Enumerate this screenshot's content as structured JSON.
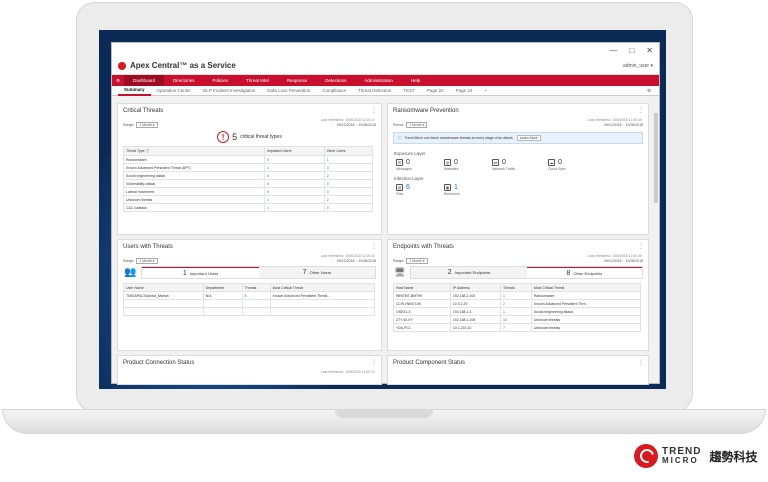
{
  "window": {
    "min": "—",
    "max": "□",
    "close": "✕"
  },
  "app": {
    "title": "Apex Central™ as a Service",
    "user": "admin_user ▾"
  },
  "nav": [
    "Dashboard",
    "Directories",
    "Policies",
    "Threat Intel",
    "Response",
    "Detections",
    "Administration",
    "Help"
  ],
  "tabs": [
    "Summary",
    "Operation Center",
    "DLP Incident Investigation",
    "Data Loss Prevention",
    "Compliance",
    "Threat Detection",
    "TEST",
    "Page 22",
    "Page 24",
    "+"
  ],
  "critical": {
    "title": "Critical Threats",
    "updated": "Last refreshed: 10/8/2018 11:00:17",
    "range_label": "Range:",
    "range": "1 Month ▾",
    "dates": "09/10/2018 ~ 10/08/2018",
    "count": "5",
    "count_label": "critical threat types",
    "headers": [
      "Threat Type ⓘ",
      "Impacted Users",
      "Other Users"
    ],
    "rows": [
      [
        "Ransomware",
        "0",
        "1"
      ],
      [
        "Known Advanced Persistent Threat (APT)",
        "1",
        "3"
      ],
      [
        "Social engineering attack",
        "0",
        "2"
      ],
      [
        "Vulnerability attack",
        "0",
        "0"
      ],
      [
        "Lateral movement",
        "0",
        "0"
      ],
      [
        "Unknown threats",
        "1",
        "2"
      ],
      [
        "C&C callback",
        "1",
        "0"
      ]
    ]
  },
  "ransom": {
    "title": "Ransomware Prevention",
    "updated": "Last refreshed: 10/8/2018 11:00:19",
    "range_label": "Period:",
    "range": "1 Month ▾",
    "dates": "09/10/2018 ~ 10/08/2018",
    "info": "Trend Micro can block ransomware threats at every stage of an attack.",
    "learn": "Learn More",
    "exposure": "Exposure Layer",
    "exp_items": [
      {
        "v": "0",
        "l": "Messages"
      },
      {
        "v": "0",
        "l": "Websites"
      },
      {
        "v": "0",
        "l": "Network Traffic"
      },
      {
        "v": "0",
        "l": "Cloud Sync"
      }
    ],
    "infection": "Infection Layer",
    "inf_items": [
      {
        "v": "6",
        "l": "Files"
      },
      {
        "v": "1",
        "l": "Behaviors"
      }
    ]
  },
  "users": {
    "title": "Users with Threats",
    "updated": "Last refreshed: 10/8/2018 11:00:20",
    "range_label": "Range:",
    "range": "1 Month ▾",
    "dates": "09/10/2018 ~ 10/08/2018",
    "seg1": "1",
    "seg1_label": "Important Users",
    "seg2": "7",
    "seg2_label": "Other Users",
    "headers": [
      "User Name",
      "Department",
      "Threats",
      "Most Critical Threat"
    ],
    "rows": [
      [
        "TMIDAPAC\\Sandra_Marian",
        "N/A",
        "8",
        "Known Advanced Persistent Threat..."
      ]
    ]
  },
  "endpoints": {
    "title": "Endpoints with Threats",
    "updated": "Last refreshed: 10/8/2018 11:00:20",
    "range_label": "Range:",
    "range": "1 Month ▾",
    "dates": "09/10/2018 ~ 10/08/2018",
    "seg1": "2",
    "seg1_label": "Important Endpoints",
    "seg2": "8",
    "seg2_label": "Other Endpoints",
    "headers": [
      "Host Name",
      "IP Address",
      "Threats",
      "Most Critical Threat"
    ],
    "rows": [
      [
        "WIN7MT-BMT99",
        "192.168.2.100",
        "1",
        "Ransomware"
      ],
      [
        "CLIR-HW07105",
        "10.0.2.29",
        "2",
        "Known Advanced Persistent Thre..."
      ],
      [
        "OSE31-3",
        "192.168.1.3",
        "1",
        "Social engineering attack"
      ],
      [
        "ZTY-W-VY",
        "192.168.1.106",
        "10",
        "Unknown threats"
      ],
      [
        "+DA-PC1",
        "10.1.215.10",
        "7",
        "Unknown threats"
      ]
    ]
  },
  "conn": {
    "title": "Product Connection Status",
    "updated": "Last refreshed: 10/8/2018 11:00:21"
  },
  "comp": {
    "title": "Product Component Status"
  },
  "brand": {
    "t1": "TREND",
    "t2": "MICRO",
    "cn": "趨勢科技"
  }
}
